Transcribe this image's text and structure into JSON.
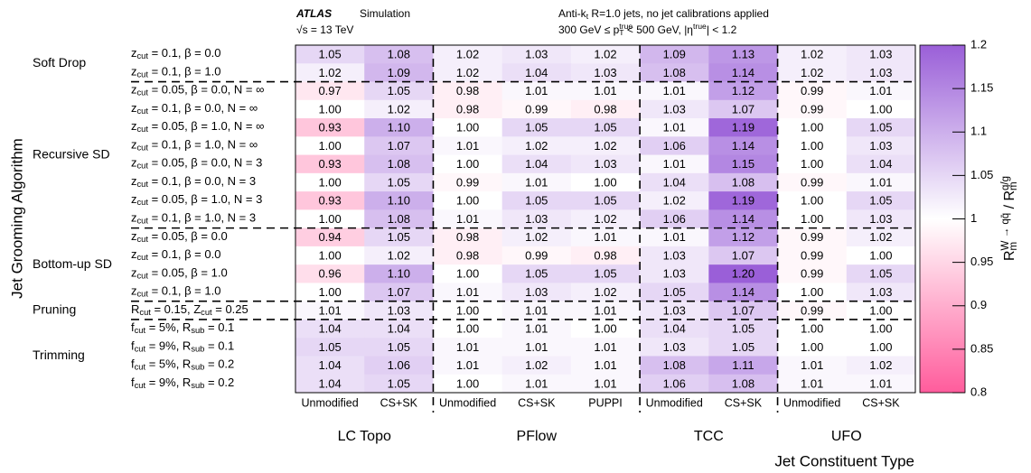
{
  "chart_data": {
    "type": "heatmap",
    "experiment": "ATLAS",
    "status": "Simulation",
    "energy": [
      "√s = 13 TeV"
    ],
    "jets": [
      "Anti-k",
      {
        "sub": "t"
      },
      " R=1.0 jets, no jet calibrations applied"
    ],
    "selection": [
      "300 GeV ≤ p",
      {
        "sup": "true"
      },
      {
        "sub": "T"
      },
      " < 500 GeV, |η",
      {
        "sup": "true"
      },
      "| < 1.2"
    ],
    "ylabel": "Jet Grooming Algorithm",
    "xlabel": "Jet Constituent Type",
    "zlabel": [
      "R",
      {
        "sub": "m"
      },
      {
        "sup": "W → qq̄"
      },
      " / R",
      {
        "sub": "m"
      },
      {
        "sup": "q/g"
      }
    ],
    "star": "★",
    "x_groups": [
      {
        "name": "LC Topo",
        "categories": [
          "Unmodified",
          "CS+SK"
        ]
      },
      {
        "name": "PFlow",
        "categories": [
          "Unmodified",
          "CS+SK",
          "PUPPI"
        ]
      },
      {
        "name": "TCC",
        "categories": [
          "Unmodified",
          "CS+SK"
        ]
      },
      {
        "name": "UFO",
        "categories": [
          "Unmodified",
          "CS+SK"
        ]
      }
    ],
    "y_groups": [
      {
        "name": "Soft Drop",
        "categories": [
          [
            "z",
            {
              "sub": "cut"
            },
            " = 0.1, β = 0.0"
          ],
          [
            "z",
            {
              "sub": "cut"
            },
            " = 0.1, β = 1.0"
          ]
        ]
      },
      {
        "name": "Recursive SD",
        "categories": [
          [
            "z",
            {
              "sub": "cut"
            },
            " = 0.05, β = 0.0, N = ∞"
          ],
          [
            "z",
            {
              "sub": "cut"
            },
            " = 0.1, β = 0.0, N = ∞"
          ],
          [
            "z",
            {
              "sub": "cut"
            },
            " = 0.05, β = 1.0, N = ∞"
          ],
          [
            "z",
            {
              "sub": "cut"
            },
            " = 0.1, β = 1.0, N = ∞"
          ],
          [
            "z",
            {
              "sub": "cut"
            },
            " = 0.05, β = 0.0, N = 3"
          ],
          [
            "z",
            {
              "sub": "cut"
            },
            " = 0.1, β = 0.0, N = 3"
          ],
          [
            "z",
            {
              "sub": "cut"
            },
            " = 0.05, β = 1.0, N = 3"
          ],
          [
            "z",
            {
              "sub": "cut"
            },
            " = 0.1, β = 1.0, N = 3"
          ]
        ]
      },
      {
        "name": "Bottom-up SD",
        "categories": [
          [
            "z",
            {
              "sub": "cut"
            },
            " = 0.05, β = 0.0"
          ],
          [
            "z",
            {
              "sub": "cut"
            },
            " = 0.1, β = 0.0"
          ],
          [
            "z",
            {
              "sub": "cut"
            },
            " = 0.05, β = 1.0"
          ],
          [
            "z",
            {
              "sub": "cut"
            },
            " = 0.1, β = 1.0"
          ]
        ]
      },
      {
        "name": "Pruning",
        "categories": [
          [
            "R",
            {
              "sub": "cut"
            },
            " = 0.15, Z",
            {
              "sub": "cut"
            },
            " = 0.25"
          ]
        ]
      },
      {
        "name": "Trimming",
        "categories": [
          [
            "f",
            {
              "sub": "cut"
            },
            " = 5%, R",
            {
              "sub": "sub"
            },
            " = 0.1"
          ],
          [
            "f",
            {
              "sub": "cut"
            },
            " = 9%, R",
            {
              "sub": "sub"
            },
            " = 0.1"
          ],
          [
            "f",
            {
              "sub": "cut"
            },
            " = 5%, R",
            {
              "sub": "sub"
            },
            " = 0.2"
          ],
          [
            "f",
            {
              "sub": "cut"
            },
            " = 9%, R",
            {
              "sub": "sub"
            },
            " = 0.2"
          ]
        ]
      }
    ],
    "values": [
      [
        1.05,
        1.08,
        1.02,
        1.03,
        1.02,
        1.09,
        1.13,
        1.02,
        1.03
      ],
      [
        1.02,
        1.09,
        1.02,
        1.04,
        1.03,
        1.08,
        1.14,
        1.02,
        1.03
      ],
      [
        0.97,
        1.05,
        0.98,
        1.01,
        1.01,
        1.01,
        1.12,
        0.99,
        1.01
      ],
      [
        1.0,
        1.02,
        0.98,
        0.99,
        0.98,
        1.03,
        1.07,
        0.99,
        1.0
      ],
      [
        0.93,
        1.1,
        1.0,
        1.05,
        1.05,
        1.01,
        1.19,
        1.0,
        1.05
      ],
      [
        1.0,
        1.07,
        1.01,
        1.02,
        1.02,
        1.06,
        1.14,
        1.0,
        1.03
      ],
      [
        0.93,
        1.08,
        1.0,
        1.04,
        1.03,
        1.01,
        1.15,
        1.0,
        1.04
      ],
      [
        1.0,
        1.05,
        0.99,
        1.01,
        1.0,
        1.04,
        1.08,
        0.99,
        1.01
      ],
      [
        0.93,
        1.1,
        1.0,
        1.05,
        1.05,
        1.02,
        1.19,
        1.0,
        1.05
      ],
      [
        1.0,
        1.08,
        1.01,
        1.03,
        1.02,
        1.06,
        1.14,
        1.0,
        1.03
      ],
      [
        0.94,
        1.05,
        0.98,
        1.02,
        1.01,
        1.01,
        1.12,
        0.99,
        1.02
      ],
      [
        1.0,
        1.02,
        0.98,
        0.99,
        0.98,
        1.03,
        1.07,
        0.99,
        1.0
      ],
      [
        0.96,
        1.1,
        1.0,
        1.05,
        1.05,
        1.03,
        1.2,
        0.99,
        1.05
      ],
      [
        1.0,
        1.07,
        1.01,
        1.03,
        1.02,
        1.05,
        1.14,
        1.0,
        1.03
      ],
      [
        1.01,
        1.03,
        1.0,
        1.01,
        1.01,
        1.03,
        1.07,
        0.99,
        1.0
      ],
      [
        1.04,
        1.04,
        1.0,
        1.01,
        1.0,
        1.04,
        1.05,
        1.0,
        1.0
      ],
      [
        1.05,
        1.05,
        1.01,
        1.01,
        1.01,
        1.03,
        1.05,
        1.0,
        1.0
      ],
      [
        1.04,
        1.06,
        1.01,
        1.02,
        1.01,
        1.08,
        1.11,
        1.01,
        1.02
      ],
      [
        1.04,
        1.05,
        1.0,
        1.01,
        1.01,
        1.06,
        1.08,
        1.01,
        1.01
      ]
    ],
    "value_labels": [
      [
        "1.05",
        "1.08",
        "1.02",
        "1.03",
        "1.02",
        "1.09",
        "1.13",
        "1.02",
        "1.03"
      ],
      [
        "1.02",
        "1.09",
        "1.02",
        "1.04",
        "1.03",
        "1.08",
        "1.14",
        "1.02",
        "1.03"
      ],
      [
        "0.97",
        "1.05",
        "0.98",
        "1.01",
        "1.01",
        "1.01",
        "1.12",
        "0.99",
        "1.01"
      ],
      [
        "1.00",
        "1.02",
        "0.98",
        "0.99",
        "0.98",
        "1.03",
        "1.07",
        "0.99",
        "1.00"
      ],
      [
        "0.93",
        "1.10",
        "1.00",
        "1.05",
        "1.05",
        "1.01",
        "1.19",
        "1.00",
        "1.05"
      ],
      [
        "1.00",
        "1.07",
        "1.01",
        "1.02",
        "1.02",
        "1.06",
        "1.14",
        "1.00",
        "1.03"
      ],
      [
        "0.93",
        "1.08",
        "1.00",
        "1.04",
        "1.03",
        "1.01",
        "1.15",
        "1.00",
        "1.04"
      ],
      [
        "1.00",
        "1.05",
        "0.99",
        "1.01",
        "1.00",
        "1.04",
        "1.08",
        "0.99",
        "1.01"
      ],
      [
        "0.93",
        "1.10",
        "1.00",
        "1.05",
        "1.05",
        "1.02",
        "1.19",
        "1.00",
        "1.05"
      ],
      [
        "1.00",
        "1.08",
        "1.01",
        "1.03",
        "1.02",
        "1.06",
        "1.14",
        "1.00",
        "1.03"
      ],
      [
        "0.94",
        "1.05",
        "0.98",
        "1.02",
        "1.01",
        "1.01",
        "1.12",
        "0.99",
        "1.02"
      ],
      [
        "1.00",
        "1.02",
        "0.98",
        "0.99",
        "0.98",
        "1.03",
        "1.07",
        "0.99",
        "1.00"
      ],
      [
        "0.96",
        "1.10",
        "1.00",
        "1.05",
        "1.05",
        "1.03",
        "1.20",
        "0.99",
        "1.05"
      ],
      [
        "1.00",
        "1.07",
        "1.01",
        "1.03",
        "1.02",
        "1.05",
        "1.14",
        "1.00",
        "1.03"
      ],
      [
        "1.01",
        "1.03",
        "1.00",
        "1.01",
        "1.01",
        "1.03",
        "1.07",
        "0.99",
        "1.00"
      ],
      [
        "1.04",
        "1.04",
        "1.00",
        "1.01",
        "1.00",
        "1.04",
        "1.05",
        "1.00",
        "1.00"
      ],
      [
        "1.05",
        "1.05",
        "1.01",
        "1.01",
        "1.01",
        "1.03",
        "1.05",
        "1.00",
        "1.00"
      ],
      [
        "1.04",
        "1.06",
        "1.01",
        "1.02",
        "1.01",
        "1.08",
        "1.11",
        "1.01",
        "1.02"
      ],
      [
        "1.04",
        "1.05",
        "1.00",
        "1.01",
        "1.01",
        "1.06",
        "1.08",
        "1.01",
        "1.01"
      ]
    ],
    "zlim": [
      0.8,
      1.2
    ],
    "zticks": [
      0.8,
      0.85,
      0.9,
      0.95,
      1,
      1.05,
      1.1,
      1.15,
      1.2
    ],
    "colormap": [
      "#ff5c9c",
      "#ffffff",
      "#9a5fd8"
    ]
  }
}
